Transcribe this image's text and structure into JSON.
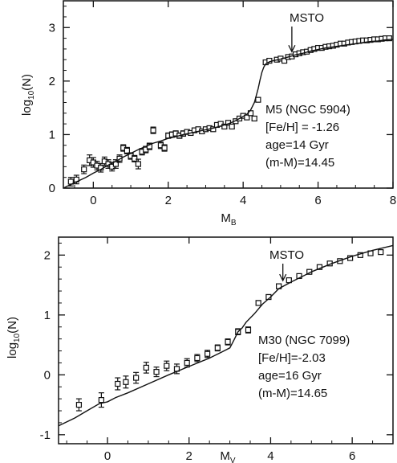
{
  "chart_data": [
    {
      "type": "scatter",
      "panel": "top",
      "xlabel": "M",
      "xlabel_sub": "B",
      "ylabel": "log",
      "ylabel_sub": "10",
      "ylabel_suffix": "(N)",
      "xlim": [
        -0.8,
        8
      ],
      "ylim": [
        0,
        3.5
      ],
      "xticks": [
        0,
        2,
        4,
        6,
        8
      ],
      "yticks": [
        0,
        1,
        2,
        3
      ],
      "grid": false,
      "annotations": {
        "cluster": "M5 (NGC 5904)",
        "feh": "[Fe/H] = -1.26",
        "age": "age=14 Gyr",
        "modulus": "(m-M)=14.45",
        "msto": "MSTO"
      },
      "msto_x": 5.3,
      "series": [
        {
          "kind": "points_with_errorbars",
          "x": [
            -0.6,
            -0.45,
            -0.25,
            -0.1,
            0.0,
            0.1,
            0.2,
            0.3,
            0.4,
            0.5,
            0.6,
            0.7,
            0.8,
            0.9,
            1.0,
            1.1,
            1.2,
            1.3,
            1.4,
            1.5,
            1.6,
            1.8,
            1.9,
            2.0,
            2.1,
            2.2,
            2.3,
            2.4,
            2.5,
            2.6,
            2.7,
            2.8,
            2.9,
            3.0,
            3.1,
            3.2,
            3.3,
            3.4,
            3.5,
            3.6,
            3.7,
            3.8,
            3.9,
            4.0,
            4.1,
            4.2,
            4.3,
            4.4,
            4.6,
            4.7,
            4.9,
            5.0,
            5.1,
            5.2,
            5.3,
            5.4,
            5.5,
            5.6,
            5.7,
            5.8,
            5.9,
            6.0,
            6.1,
            6.2,
            6.3,
            6.4,
            6.5,
            6.6,
            6.7,
            6.8,
            6.9,
            7.0,
            7.1,
            7.2,
            7.3,
            7.4,
            7.5,
            7.6,
            7.7,
            7.8,
            7.9
          ],
          "y": [
            0.12,
            0.16,
            0.35,
            0.52,
            0.48,
            0.42,
            0.38,
            0.5,
            0.45,
            0.4,
            0.45,
            0.55,
            0.75,
            0.7,
            0.6,
            0.55,
            0.45,
            0.68,
            0.72,
            0.78,
            1.08,
            0.8,
            0.75,
            0.98,
            1.0,
            1.02,
            0.98,
            1.02,
            1.05,
            1.03,
            1.08,
            1.1,
            1.06,
            1.1,
            1.12,
            1.1,
            1.18,
            1.2,
            1.15,
            1.22,
            1.15,
            1.25,
            1.3,
            1.35,
            1.32,
            1.4,
            1.3,
            1.65,
            2.35,
            2.38,
            2.4,
            2.42,
            2.38,
            2.45,
            2.46,
            2.5,
            2.52,
            2.54,
            2.55,
            2.58,
            2.6,
            2.62,
            2.62,
            2.64,
            2.65,
            2.66,
            2.68,
            2.7,
            2.7,
            2.72,
            2.73,
            2.74,
            2.75,
            2.76,
            2.76,
            2.77,
            2.78,
            2.78,
            2.79,
            2.8,
            2.8
          ],
          "err": [
            0.08,
            0.08,
            0.08,
            0.1,
            0.09,
            0.08,
            0.08,
            0.08,
            0.08,
            0.08,
            0.08,
            0.07,
            0.06,
            0.06,
            0.06,
            0.06,
            0.09,
            0.06,
            0.06,
            0.06,
            0.06,
            0.06,
            0.06,
            0.05,
            0.05,
            0.05,
            0.05,
            0.05,
            0.04,
            0.04,
            0.04,
            0.04,
            0.04,
            0.04,
            0.04,
            0.04,
            0.04,
            0.04,
            0.04,
            0.04,
            0.04,
            0.04,
            0.04,
            0.04,
            0.04,
            0.04,
            0.04,
            0.04,
            0.04,
            0.04,
            0.03,
            0.03,
            0.03,
            0.03,
            0.03,
            0.03,
            0.03,
            0.03,
            0.03,
            0.03,
            0.03,
            0.03,
            0.03,
            0.03,
            0.03,
            0.03,
            0.03,
            0.03,
            0.03,
            0.03,
            0.03,
            0.03,
            0.03,
            0.03,
            0.03,
            0.03,
            0.03,
            0.03,
            0.03,
            0.03,
            0.03
          ]
        },
        {
          "kind": "model_line",
          "x": [
            -0.8,
            -0.5,
            -0.2,
            0.0,
            0.2,
            0.4,
            0.6,
            0.8,
            1.0,
            1.2,
            1.4,
            1.6,
            1.8,
            2.0,
            2.2,
            2.4,
            2.6,
            2.8,
            3.0,
            3.2,
            3.4,
            3.6,
            3.8,
            4.0,
            4.1,
            4.2,
            4.3,
            4.4,
            4.45,
            4.5,
            4.55,
            4.6,
            4.7,
            4.8,
            5.0,
            5.2,
            5.4,
            5.6,
            5.8,
            6.0,
            6.2,
            6.4,
            6.6,
            6.8,
            7.0,
            7.2,
            7.4,
            7.6,
            7.8,
            8.0
          ],
          "y": [
            0.0,
            0.1,
            0.2,
            0.28,
            0.35,
            0.43,
            0.5,
            0.58,
            0.65,
            0.72,
            0.78,
            0.84,
            0.88,
            0.93,
            0.96,
            1.0,
            1.03,
            1.06,
            1.09,
            1.12,
            1.16,
            1.2,
            1.26,
            1.34,
            1.38,
            1.46,
            1.6,
            1.86,
            2.02,
            2.16,
            2.26,
            2.32,
            2.36,
            2.38,
            2.41,
            2.45,
            2.49,
            2.52,
            2.56,
            2.59,
            2.62,
            2.64,
            2.66,
            2.68,
            2.7,
            2.72,
            2.74,
            2.75,
            2.77,
            2.78
          ]
        }
      ]
    },
    {
      "type": "scatter",
      "panel": "bottom",
      "xlabel": "M",
      "xlabel_sub": "V",
      "ylabel": "log",
      "ylabel_sub": "10",
      "ylabel_suffix": "(N)",
      "xlim": [
        -1.2,
        7
      ],
      "ylim": [
        -1.15,
        2.3
      ],
      "xticks": [
        0,
        2,
        4,
        6
      ],
      "yticks": [
        -1,
        0,
        1,
        2
      ],
      "grid": false,
      "annotations": {
        "cluster": "M30 (NGC 7099)",
        "feh": "[Fe/H]=-2.03",
        "age": "age=16 Gyr",
        "modulus": "(m-M)=14.65",
        "msto": "MSTO"
      },
      "msto_x": 4.3,
      "series": [
        {
          "kind": "points_with_errorbars",
          "x": [
            -0.7,
            -0.15,
            0.25,
            0.45,
            0.7,
            0.95,
            1.2,
            1.45,
            1.7,
            1.95,
            2.2,
            2.45,
            2.7,
            2.95,
            3.2,
            3.45,
            3.7,
            3.95,
            4.2,
            4.45,
            4.7,
            4.95,
            5.2,
            5.45,
            5.7,
            5.95,
            6.2,
            6.45,
            6.7
          ],
          "y": [
            -0.5,
            -0.42,
            -0.15,
            -0.12,
            -0.05,
            0.12,
            0.05,
            0.15,
            0.1,
            0.2,
            0.28,
            0.35,
            0.45,
            0.55,
            0.72,
            0.75,
            1.2,
            1.3,
            1.48,
            1.58,
            1.65,
            1.72,
            1.8,
            1.86,
            1.9,
            1.95,
            2.0,
            2.03,
            2.05
          ],
          "err": [
            0.1,
            0.12,
            0.1,
            0.1,
            0.09,
            0.09,
            0.08,
            0.08,
            0.08,
            0.07,
            0.06,
            0.06,
            0.05,
            0.05,
            0.05,
            0.05,
            0.04,
            0.04,
            0.04,
            0.03,
            0.03,
            0.03,
            0.03,
            0.03,
            0.03,
            0.03,
            0.03,
            0.03,
            0.03
          ]
        },
        {
          "kind": "model_line",
          "x": [
            -1.2,
            -0.8,
            -0.5,
            -0.2,
            0.0,
            0.2,
            0.5,
            1.0,
            1.5,
            2.0,
            2.5,
            2.8,
            3.0,
            3.1,
            3.2,
            3.3,
            3.4,
            3.6,
            3.8,
            4.0,
            4.2,
            4.5,
            5.0,
            5.5,
            6.0,
            6.5,
            7.0
          ],
          "y": [
            -0.85,
            -0.72,
            -0.6,
            -0.48,
            -0.45,
            -0.38,
            -0.3,
            -0.15,
            0.0,
            0.14,
            0.28,
            0.38,
            0.45,
            0.58,
            0.72,
            0.78,
            0.88,
            1.02,
            1.18,
            1.3,
            1.44,
            1.55,
            1.72,
            1.86,
            1.98,
            2.08,
            2.16
          ]
        }
      ]
    }
  ]
}
